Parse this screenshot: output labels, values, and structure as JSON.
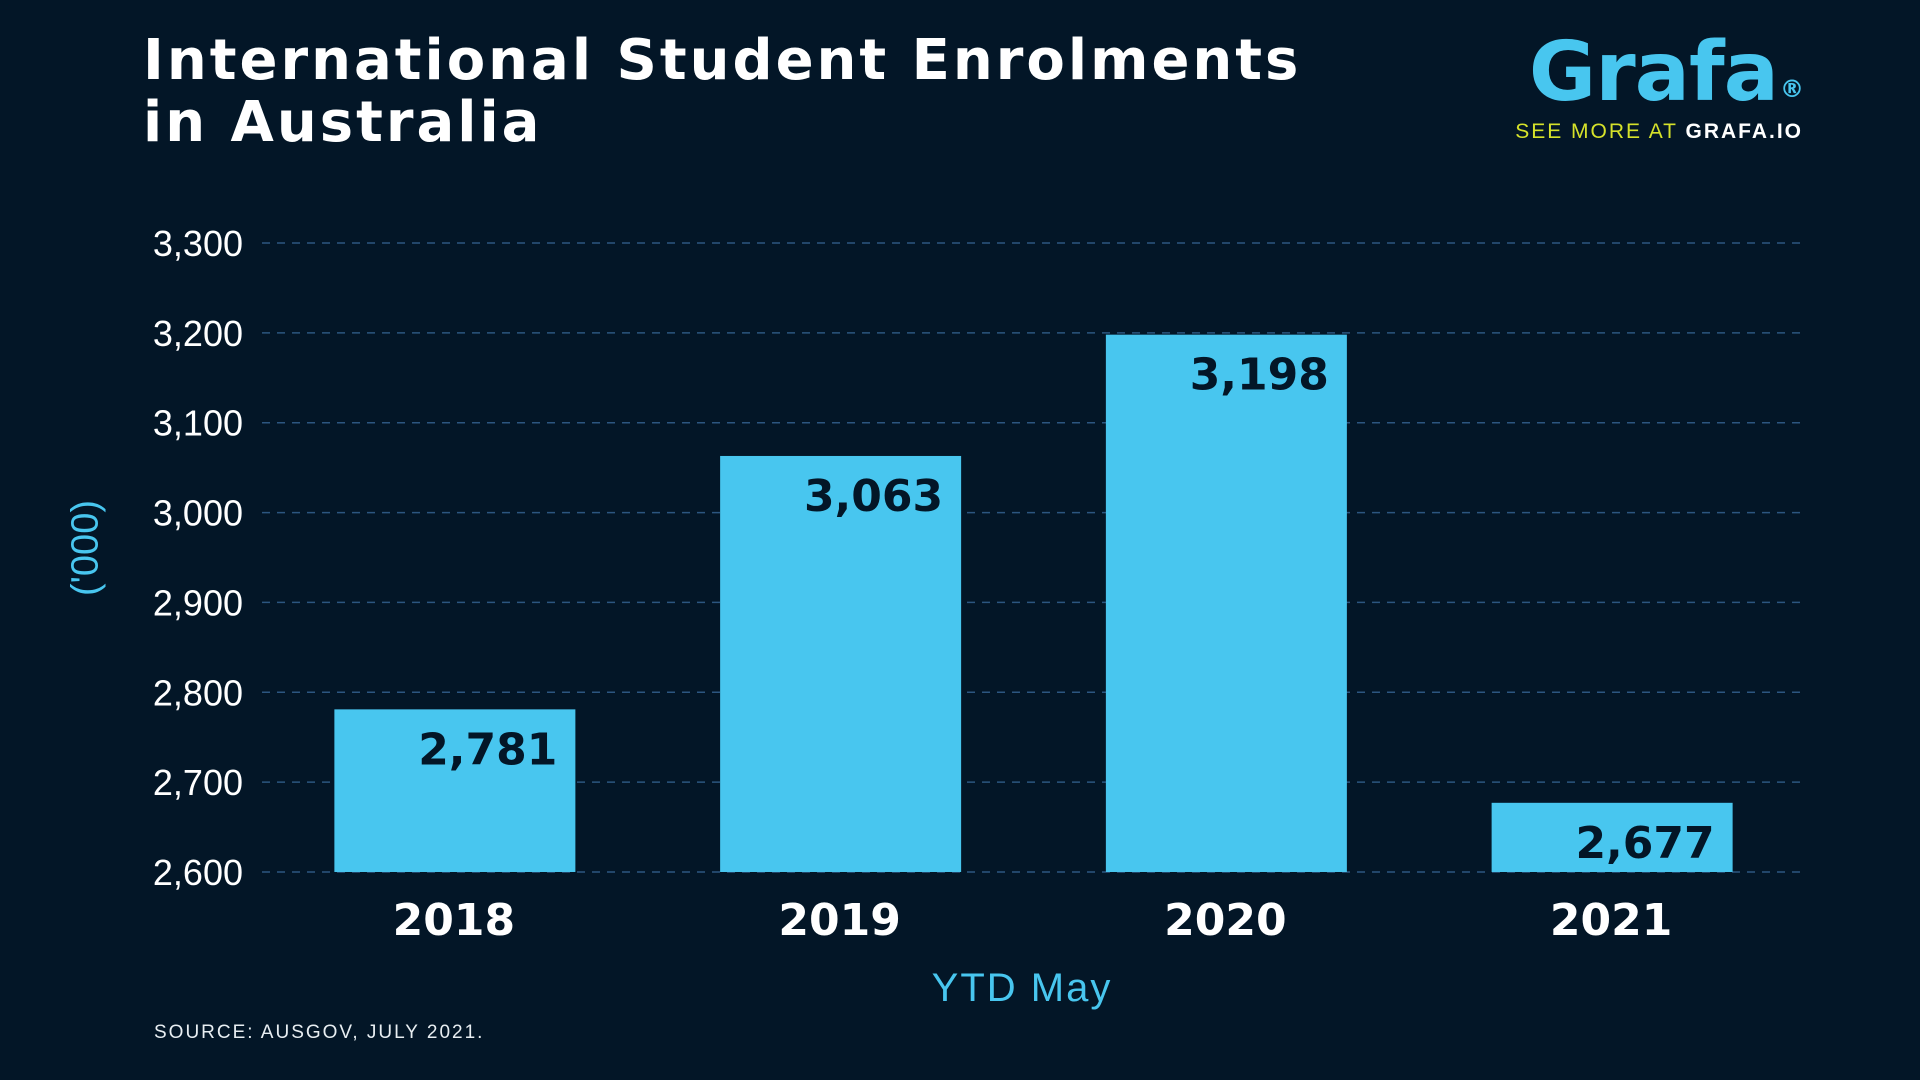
{
  "header": {
    "title_line1": "International Student Enrolments",
    "title_line2": "in Australia"
  },
  "brand": {
    "logo": "Grafa",
    "registered": "®",
    "tag_prefix": "SEE MORE AT",
    "tag_site": "GRAFA.IO"
  },
  "footer": {
    "source": "SOURCE: AUSGOV, JULY 2021."
  },
  "colors": {
    "background": "#031627",
    "bar": "#48c6ef",
    "accent_text": "#48c6ef",
    "tagline": "#d6e22a",
    "grid": "#2c5680",
    "bar_label": "#031627"
  },
  "chart_data": {
    "type": "bar",
    "title": "International Student Enrolments in Australia",
    "xlabel": "YTD May",
    "ylabel": "('000)",
    "categories": [
      "2018",
      "2019",
      "2020",
      "2021"
    ],
    "values": [
      2781,
      3063,
      3198,
      2677
    ],
    "value_labels": [
      "2,781",
      "3,063",
      "3,198",
      "2,677"
    ],
    "ylim": [
      2600,
      3300
    ],
    "yticks": [
      2600,
      2700,
      2800,
      2900,
      3000,
      3100,
      3200,
      3300
    ],
    "ytick_labels": [
      "2,600",
      "2,700",
      "2,800",
      "2,900",
      "3,000",
      "3,100",
      "3,200",
      "3,300"
    ],
    "grid": true,
    "grid_style": "dashed"
  }
}
